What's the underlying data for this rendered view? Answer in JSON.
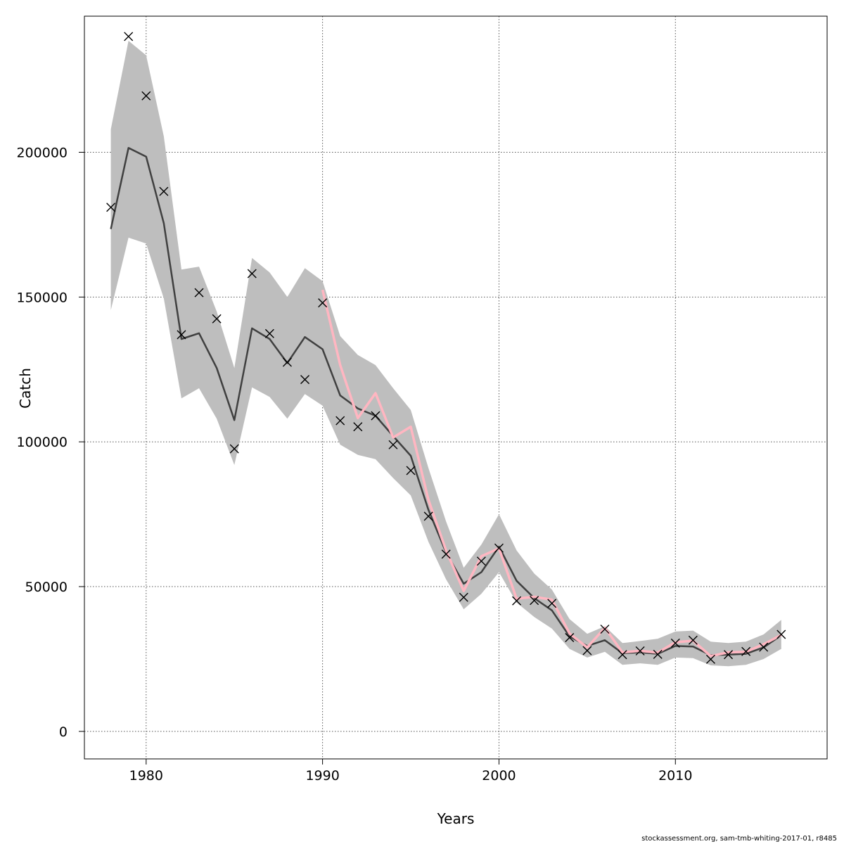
{
  "chart_data": {
    "type": "line",
    "xlabel": "Years",
    "ylabel": "Catch",
    "xlim": [
      1976.5,
      2018.6
    ],
    "ylim": [
      -9500,
      247000
    ],
    "x_ticks": [
      1980,
      1990,
      2000,
      2010
    ],
    "y_ticks": [
      0,
      50000,
      100000,
      150000,
      200000
    ],
    "grid": true,
    "x": [
      1978,
      1979,
      1980,
      1981,
      1982,
      1983,
      1984,
      1985,
      1986,
      1987,
      1988,
      1989,
      1990,
      1991,
      1992,
      1993,
      1994,
      1995,
      1996,
      1997,
      1998,
      1999,
      2000,
      2001,
      2002,
      2003,
      2004,
      2005,
      2006,
      2007,
      2008,
      2009,
      2010,
      2011,
      2012,
      2013,
      2014,
      2015,
      2016
    ],
    "series": [
      {
        "role": "estimate",
        "color": "#404040",
        "values": [
          173500,
          201500,
          198500,
          175500,
          135500,
          137500,
          125500,
          107500,
          139200,
          135500,
          127200,
          136200,
          132000,
          116000,
          111500,
          109000,
          102000,
          95200,
          76500,
          61800,
          51000,
          55000,
          63800,
          52000,
          46000,
          41800,
          32800,
          29500,
          31500,
          27000,
          27300,
          26800,
          29500,
          29300,
          26300,
          26500,
          26800,
          29000,
          33200
        ],
        "lower": [
          145500,
          170500,
          168500,
          149500,
          115000,
          118500,
          108000,
          92000,
          118800,
          115500,
          108000,
          116500,
          112500,
          99000,
          95500,
          94000,
          87500,
          81500,
          65500,
          52500,
          42200,
          47500,
          55000,
          44500,
          39500,
          35500,
          28500,
          25500,
          27500,
          23000,
          23500,
          23000,
          25500,
          25300,
          22800,
          22500,
          23000,
          25000,
          28500
        ],
        "upper": [
          208000,
          238500,
          233500,
          205500,
          159500,
          160500,
          145000,
          125500,
          163500,
          158500,
          150000,
          160000,
          155500,
          136500,
          130000,
          126500,
          118500,
          111000,
          91000,
          72500,
          56500,
          64500,
          75000,
          62500,
          54500,
          49000,
          38800,
          33700,
          36300,
          30500,
          31200,
          32000,
          34500,
          34800,
          31000,
          30500,
          31000,
          33500,
          38500
        ]
      },
      {
        "role": "alternate",
        "color": "#ffb6c1",
        "x": [
          1990,
          1991,
          1992,
          1993,
          1994,
          1995,
          1996,
          1997,
          1998,
          1999,
          2000,
          2001,
          2002,
          2003,
          2004,
          2005,
          2006,
          2007,
          2008,
          2009,
          2010,
          2011,
          2012,
          2013,
          2014,
          2015,
          2016
        ],
        "values": [
          152500,
          126500,
          108200,
          116800,
          101500,
          105200,
          80000,
          62500,
          48500,
          60500,
          63200,
          45800,
          46500,
          45500,
          33800,
          29000,
          35800,
          27300,
          27800,
          27200,
          30800,
          31300,
          26000,
          27300,
          27500,
          30100,
          33300
        ]
      },
      {
        "role": "observed",
        "marker": "x",
        "color": "#000000",
        "values": [
          181000,
          240000,
          219500,
          186500,
          137000,
          151500,
          142500,
          97600,
          158100,
          137400,
          127500,
          121500,
          148000,
          107300,
          105200,
          109000,
          99000,
          90100,
          74300,
          61200,
          46300,
          58800,
          63300,
          45100,
          45200,
          44200,
          32400,
          27900,
          35300,
          26500,
          27800,
          26600,
          30500,
          31500,
          24900,
          26500,
          27600,
          29100,
          33500
        ]
      }
    ]
  },
  "footer_text": "stockassessment.org, sam-tmb-whiting-2017-01, r8485"
}
